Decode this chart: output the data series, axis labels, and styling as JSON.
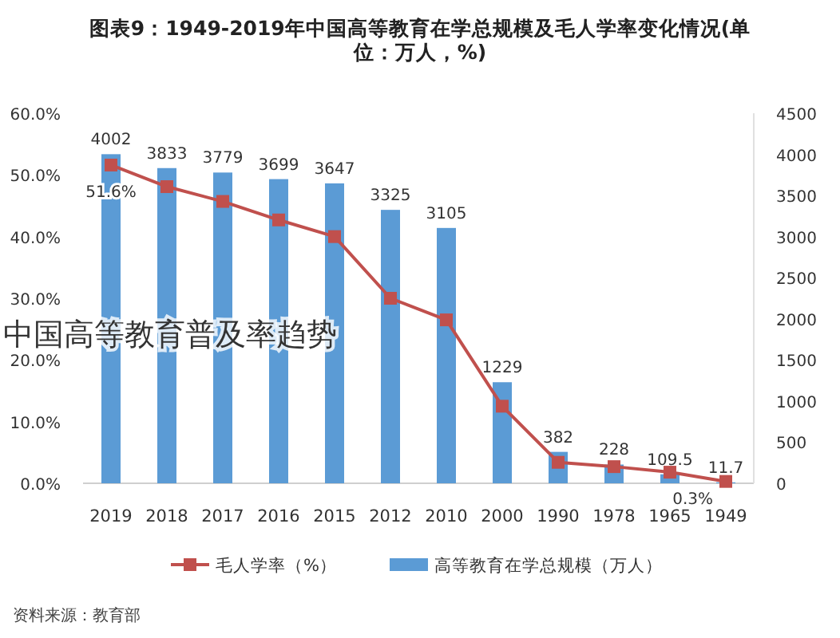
{
  "chart_data": {
    "type": "bar",
    "title": "图表9：1949-2019年中国高等教育在学总规模及毛人学率变化情况(单位：万人，%)",
    "categories": [
      "2019",
      "2018",
      "2017",
      "2016",
      "2015",
      "2012",
      "2010",
      "2000",
      "1990",
      "1978",
      "1965",
      "1949"
    ],
    "series": [
      {
        "name": "毛人学率（%）",
        "type": "line",
        "color": "#c0504d",
        "marker": "square",
        "values": [
          51.6,
          48.1,
          45.7,
          42.7,
          40.0,
          30.0,
          26.5,
          12.5,
          3.4,
          2.7,
          1.8,
          0.3
        ],
        "value_labels": [
          "51.6%",
          null,
          null,
          null,
          null,
          null,
          null,
          null,
          null,
          null,
          null,
          "0.3%"
        ]
      },
      {
        "name": "高等教育在学总规模（万人）",
        "axis": "y2",
        "color": "#5b9bd5",
        "data_labels": true,
        "values": [
          4002,
          3833,
          3779,
          3699,
          3647,
          3325,
          3105,
          1229,
          382,
          228,
          109.5,
          11.7
        ]
      }
    ],
    "ylim": [
      0,
      60
    ],
    "yticks": [
      {
        "value": 0,
        "label": "0.0%"
      },
      {
        "value": 10,
        "label": "10.0%"
      },
      {
        "value": 20,
        "label": "20.0%"
      },
      {
        "value": 30,
        "label": "30.0%"
      },
      {
        "value": 40,
        "label": "40.0%"
      },
      {
        "value": 50,
        "label": "50.0%"
      },
      {
        "value": 60,
        "label": "60.0%"
      }
    ],
    "y2lim": [
      0,
      4500
    ],
    "y2ticks": [
      0,
      500,
      1000,
      1500,
      2000,
      2500,
      3000,
      3500,
      4000,
      4500
    ],
    "grid": false,
    "legend": "bottom",
    "annotations": [
      "中国高等教育普及率趋势",
      "资料来源：教育部"
    ]
  }
}
